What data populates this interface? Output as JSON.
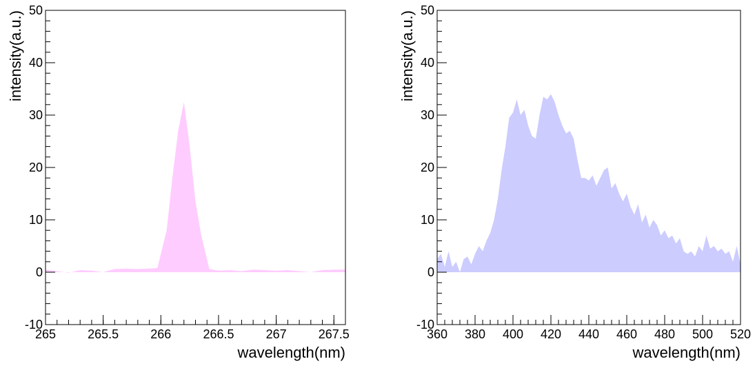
{
  "chart_data": [
    {
      "type": "area",
      "xlabel": "wavelength(nm)",
      "ylabel": "intensity(a.u.)",
      "xlim": [
        265,
        267.6
      ],
      "ylim": [
        -10,
        50
      ],
      "x_ticks": [
        "265",
        "265.5",
        "266",
        "266.5",
        "267",
        "267.5"
      ],
      "y_ticks": [
        "-10",
        "0",
        "10",
        "20",
        "30",
        "40",
        "50"
      ],
      "fill_color": "#ffccff",
      "series": [
        {
          "x": [
            265.0,
            265.1,
            265.2,
            265.3,
            265.4,
            265.5,
            265.6,
            265.7,
            265.8,
            265.9,
            265.97,
            266.05,
            266.1,
            266.15,
            266.2,
            266.25,
            266.3,
            266.35,
            266.42,
            266.5,
            266.6,
            266.7,
            266.8,
            266.9,
            267.0,
            267.1,
            267.2,
            267.3,
            267.4,
            267.5,
            267.6
          ],
          "y": [
            0.5,
            0.2,
            -0.1,
            0.4,
            0.3,
            0.0,
            0.6,
            0.7,
            0.6,
            0.7,
            0.8,
            8.0,
            18.0,
            27.0,
            32.5,
            24.0,
            13.5,
            7.0,
            0.6,
            0.3,
            0.4,
            0.2,
            0.5,
            0.4,
            0.3,
            0.4,
            0.2,
            0.0,
            0.4,
            0.5,
            0.5
          ]
        }
      ]
    },
    {
      "type": "area",
      "xlabel": "wavelength(nm)",
      "ylabel": "intensity(a.u.)",
      "xlim": [
        360,
        520
      ],
      "ylim": [
        -10,
        50
      ],
      "x_ticks": [
        "360",
        "380",
        "400",
        "420",
        "440",
        "460",
        "480",
        "500",
        "520"
      ],
      "y_ticks": [
        "-10",
        "0",
        "10",
        "20",
        "30",
        "40",
        "50"
      ],
      "fill_color": "#ccccff",
      "series": [
        {
          "x": [
            360,
            362,
            364,
            366,
            368,
            370,
            372,
            374,
            376,
            378,
            380,
            382,
            384,
            386,
            388,
            390,
            392,
            394,
            396,
            398,
            400,
            402,
            404,
            406,
            408,
            410,
            412,
            414,
            416,
            418,
            420,
            422,
            424,
            426,
            428,
            430,
            432,
            434,
            436,
            438,
            440,
            442,
            444,
            446,
            448,
            450,
            452,
            454,
            456,
            458,
            460,
            462,
            464,
            466,
            468,
            470,
            472,
            474,
            476,
            478,
            480,
            482,
            484,
            486,
            488,
            490,
            492,
            494,
            496,
            498,
            500,
            502,
            504,
            506,
            508,
            510,
            512,
            514,
            516,
            518,
            520
          ],
          "y": [
            2.5,
            3.5,
            1.0,
            4.0,
            1.0,
            2.0,
            0.0,
            2.5,
            3.0,
            1.5,
            3.5,
            5.0,
            4.0,
            6.0,
            7.5,
            10.0,
            14.0,
            19.5,
            24.0,
            29.5,
            30.5,
            33.0,
            30.0,
            31.0,
            28.0,
            26.0,
            25.5,
            30.0,
            33.5,
            33.0,
            34.0,
            32.5,
            30.0,
            28.0,
            26.5,
            27.0,
            25.5,
            21.5,
            18.0,
            18.0,
            17.5,
            18.5,
            16.5,
            18.0,
            19.5,
            20.0,
            16.0,
            17.0,
            15.0,
            13.5,
            15.0,
            12.5,
            11.0,
            13.0,
            9.5,
            11.0,
            8.5,
            10.0,
            9.0,
            7.0,
            8.0,
            6.5,
            7.0,
            5.5,
            6.5,
            4.0,
            3.5,
            4.0,
            3.0,
            5.0,
            4.0,
            7.0,
            4.5,
            5.0,
            4.0,
            4.5,
            3.5,
            4.0,
            2.0,
            5.0,
            1.5
          ]
        }
      ]
    }
  ]
}
